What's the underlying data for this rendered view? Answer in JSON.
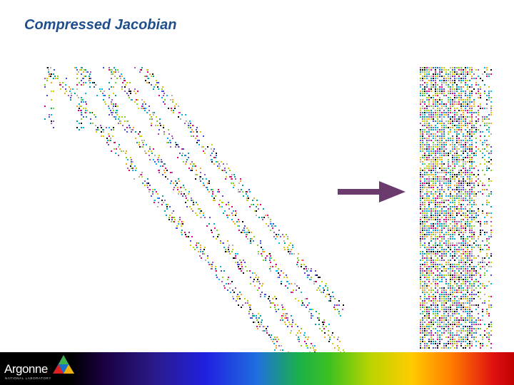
{
  "slide": {
    "title": "Compressed Jacobian"
  },
  "logo": {
    "name": "Argonne",
    "subtitle": "NATIONAL LABORATORY",
    "mark_icon": "argonne-triangle-icon"
  },
  "arrow_icon": "right-arrow-icon",
  "colors": {
    "title": "#1f4e8c",
    "arrow": "#6b3b6e",
    "footer_start": "#000000",
    "footer_end": "#c00000",
    "palette": [
      "#e6007e",
      "#00b7eb",
      "#f5a623",
      "#7ed321",
      "#4a4ad8",
      "#000000",
      "#d0d000",
      "#b0b0b0",
      "#9b59b6",
      "#00a0a0"
    ]
  }
}
